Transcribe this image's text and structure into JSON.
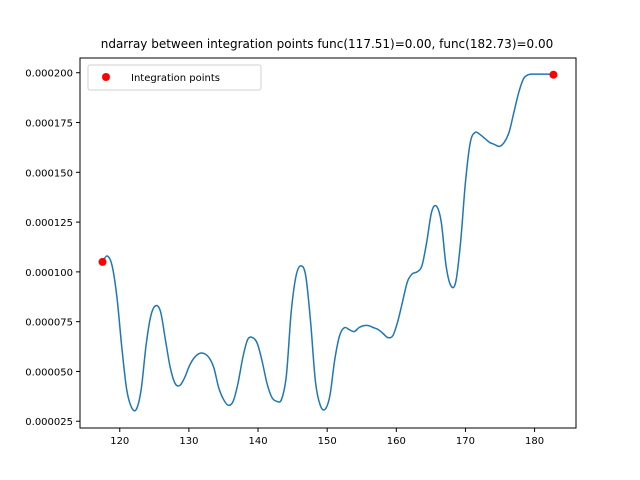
{
  "chart_data": {
    "type": "line",
    "title": "ndarray between integration points func(117.51)=0.00, func(182.73)=0.00",
    "xlabel": "",
    "ylabel": "",
    "xlim": [
      114.25,
      185.99
    ],
    "ylim": [
      2.16e-05,
      0.0002074
    ],
    "xticks": [
      120,
      130,
      140,
      150,
      160,
      170,
      180
    ],
    "xtick_labels": [
      "120",
      "130",
      "140",
      "150",
      "160",
      "170",
      "180"
    ],
    "yticks": [
      2.5e-05,
      5e-05,
      7.5e-05,
      0.0001,
      0.000125,
      0.00015,
      0.000175,
      0.0002
    ],
    "ytick_labels": [
      "0.000025",
      "0.000050",
      "0.000075",
      "0.000100",
      "0.000125",
      "0.000150",
      "0.000175",
      "0.000200"
    ],
    "grid": false,
    "legend_position": "top-left",
    "legend_label": "Integration points",
    "line_color": "#1f77b4",
    "point_color": "#ff0000",
    "series": [
      {
        "x": [
          117.51,
          118.2,
          118.9,
          119.6,
          120.3,
          121.0,
          121.7,
          122.4,
          123.1,
          123.8,
          124.5,
          125.2,
          125.9,
          126.6,
          127.3,
          128.0,
          128.7,
          129.4,
          130.1,
          130.8,
          131.5,
          132.2,
          132.9,
          133.6,
          134.3,
          135.0,
          135.7,
          136.4,
          137.1,
          137.8,
          138.5,
          139.2,
          139.9,
          140.6,
          141.3,
          142.0,
          142.7,
          143.4,
          144.1,
          144.8,
          145.5,
          146.2,
          146.9,
          147.6,
          148.3,
          149.0,
          149.7,
          150.4,
          151.1,
          151.8,
          152.5,
          153.2,
          153.9,
          154.6,
          155.3,
          156.0,
          156.7,
          157.4,
          158.1,
          158.8,
          159.5,
          160.2,
          160.9,
          161.6,
          162.3,
          163.0,
          163.7,
          164.4,
          165.1,
          165.8,
          166.5,
          167.2,
          167.9,
          168.6,
          169.3,
          170.0,
          170.7,
          171.4,
          172.1,
          172.8,
          173.5,
          174.2,
          174.9,
          175.6,
          176.3,
          177.0,
          177.7,
          178.4,
          179.1,
          179.8,
          180.5,
          181.2,
          181.9,
          182.73
        ],
        "y": [
          0.000105,
          0.000108,
          0.000103,
          8.7e-05,
          6.2e-05,
          4.1e-05,
          3.2e-05,
          3.1e-05,
          4.1e-05,
          6.3e-05,
          7.8e-05,
          8.3e-05,
          8e-05,
          6.6e-05,
          5.2e-05,
          4.4e-05,
          4.3e-05,
          4.7e-05,
          5.3e-05,
          5.7e-05,
          5.9e-05,
          5.9e-05,
          5.7e-05,
          5.2e-05,
          4.2e-05,
          3.6e-05,
          3.3e-05,
          3.5e-05,
          4.4e-05,
          5.7e-05,
          6.6e-05,
          6.7e-05,
          6.4e-05,
          5.5e-05,
          4.4e-05,
          3.7e-05,
          3.5e-05,
          3.6e-05,
          4.8e-05,
          8e-05,
          9.8e-05,
          0.000103,
          9.8e-05,
          7.5e-05,
          4.5e-05,
          3.3e-05,
          3.1e-05,
          3.8e-05,
          5.6e-05,
          6.8e-05,
          7.2e-05,
          7.1e-05,
          7e-05,
          7.2e-05,
          7.3e-05,
          7.3e-05,
          7.2e-05,
          7.1e-05,
          6.9e-05,
          6.7e-05,
          6.8e-05,
          7.5e-05,
          8.5e-05,
          9.5e-05,
          9.9e-05,
          0.0001,
          0.000103,
          0.000115,
          0.00013,
          0.000133,
          0.000125,
          0.000103,
          9.3e-05,
          9.5e-05,
          0.000115,
          0.000145,
          0.000165,
          0.00017,
          0.000169,
          0.000167,
          0.000165,
          0.000164,
          0.000163,
          0.000165,
          0.00017,
          0.00018,
          0.00019,
          0.000197,
          0.000199,
          0.0001993,
          0.0001993,
          0.0001993,
          0.0001993,
          0.000199
        ]
      }
    ],
    "points": [
      {
        "x": 117.51,
        "y": 0.000105
      },
      {
        "x": 182.73,
        "y": 0.000199
      }
    ]
  }
}
